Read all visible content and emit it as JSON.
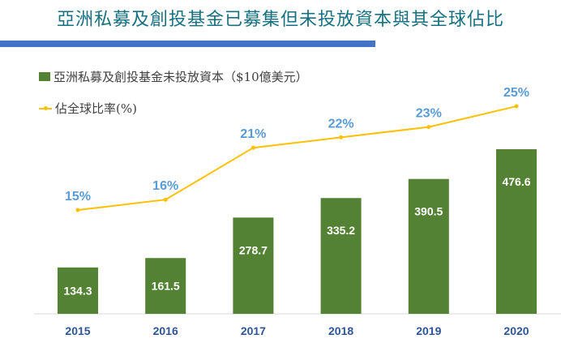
{
  "title": "亞洲私募及創投基金已募集但未投放資本與其全球佔比",
  "chart_data": {
    "type": "bar+line",
    "categories": [
      "2015",
      "2016",
      "2017",
      "2018",
      "2019",
      "2020"
    ],
    "series": [
      {
        "name": "亞洲私募及創投基金未投放資本（$10億美元）",
        "type": "bar",
        "values": [
          134.3,
          161.5,
          278.7,
          335.2,
          390.5,
          476.6
        ],
        "labels": [
          "134.3",
          "161.5",
          "278.7",
          "335.2",
          "390.5",
          "476.6"
        ],
        "color": "#548235"
      },
      {
        "name": "佔全球比率(%)",
        "type": "line",
        "values": [
          15,
          16,
          21,
          22,
          23,
          25
        ],
        "labels": [
          "15%",
          "16%",
          "21%",
          "22%",
          "23%",
          "25%"
        ],
        "color": "#ffc000"
      }
    ],
    "legend_position": "top-left",
    "grid": false
  }
}
